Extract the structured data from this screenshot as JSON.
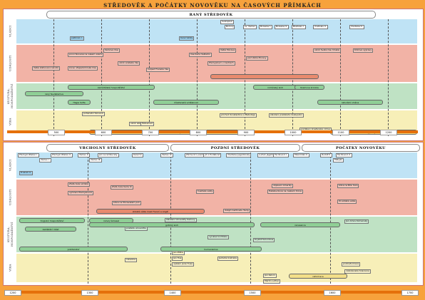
{
  "title": "STŘEDOVĚK A POČÁTKY NOVOVĚKU NA ČASOVÝCH PŘÍMKÁCH",
  "top_panel": {
    "era": "RANÝ STŘEDOVĚK",
    "band_labels": [
      "VLÁDCI",
      "UDÁLOSTI",
      "KULTURA, HOSPODÁŘSTVÍ",
      "VÍRA"
    ],
    "rulers": [
      {
        "text": "Svatopluk"
      },
      {
        "text": "Bořivoj"
      },
      {
        "text": "sv. Václav"
      },
      {
        "text": "Boleslav I."
      },
      {
        "text": "Boleslav II."
      },
      {
        "text": "Břetislav I."
      },
      {
        "text": "Vratislav II."
      },
      {
        "text": "Vladislav II."
      },
      {
        "text": "Justinián I."
      },
      {
        "text": "Karel Veliký"
      }
    ],
    "events": [
      {
        "text": "Sámova říše"
      },
      {
        "text": "první Slované na našem území"
      },
      {
        "text": "Velká Morava"
      },
      {
        "text": "říše Karla Velikého"
      },
      {
        "text": "vznik arabské říše"
      },
      {
        "text": "Přemyslovci v Čechách"
      },
      {
        "text": "vznik Svaté říše římské"
      },
      {
        "text": "Velké stěhování národů"
      },
      {
        "text": "Křížové výpravy"
      },
      {
        "text": "konec Západořímské říše"
      },
      {
        "text": "pád Velké Moravy"
      },
      {
        "text": "rozpad Franské říše"
      }
    ],
    "culture": [
      {
        "text": "zemědělské hospodářství"
      },
      {
        "text": "románský sloh"
      },
      {
        "text": "Hagia Sofia"
      },
      {
        "text": "křesťanská vzdělanost"
      },
      {
        "text": "raný feudalismus"
      },
      {
        "text": "Kosmova kronika"
      },
      {
        "text": "naturální směna"
      }
    ],
    "faith": [
      {
        "text": "pohanství Slovanů"
      },
      {
        "text": "vznik islámu"
      },
      {
        "text": "Mohamed"
      },
      {
        "text": "příchod Konstantina a Metoděje"
      },
      {
        "text": "založení pražského biskupství"
      },
      {
        "text": "rozdělení křesťanské církve"
      },
      {
        "text": "šíření křesťanství v Evropě"
      },
      {
        "text": "křížové výpravy do Palestiny"
      }
    ],
    "years": [
      "500",
      "600",
      "700",
      "800",
      "900",
      "1000",
      "1100",
      "1200"
    ]
  },
  "bottom_panel": {
    "eras": [
      "VRCHOLNÝ STŘEDOVĚK",
      "POZDNÍ STŘEDOVĚK",
      "POČÁTKY NOVOVĚKU"
    ],
    "band_labels": [
      "VLÁDCI",
      "UDÁLOSTI",
      "KULTURA, HOSPODÁŘSTVÍ",
      "VÍRA"
    ],
    "rulers": [
      {
        "text": "Přemysl Otakar I."
      },
      {
        "text": "Přemysl Otakar II."
      },
      {
        "text": "Václav II."
      },
      {
        "text": "Jan Lucemburský"
      },
      {
        "text": "Karel IV."
      },
      {
        "text": "Václav IV."
      },
      {
        "text": "Zikmund Lucemburský"
      },
      {
        "text": "Jiří z Poděbrad"
      },
      {
        "text": "Vladislav Jagellonský"
      },
      {
        "text": "Ludvík Jagellonský"
      },
      {
        "text": "Ferdinand I."
      },
      {
        "text": "Maxmilián II."
      },
      {
        "text": "Rudolf II."
      },
      {
        "text": "Ferdinand II."
      },
      {
        "text": "Václav I."
      },
      {
        "text": "Václav III."
      },
      {
        "text": "Matyáš"
      },
      {
        "text": "Fridrich II."
      }
    ],
    "events": [
      {
        "text": "Zlatá bula sicilská"
      },
      {
        "text": "vymření Přemyslovců"
      },
      {
        "text": "Zlatá bula Karla IV."
      },
      {
        "text": "husitské války"
      },
      {
        "text": "stoletá válka mezi Francií a Anglií"
      },
      {
        "text": "Habsburkové na českém trůně"
      },
      {
        "text": "třicetiletá válka"
      },
      {
        "text": "bitva na Moravském poli"
      },
      {
        "text": "bitva na Bílé hoře"
      },
      {
        "text": "objevení Ameriky"
      },
      {
        "text": "dobytí Cařihradu Turky"
      }
    ],
    "culture": [
      {
        "text": "trojpolní hospodářství"
      },
      {
        "text": "gotický sloh"
      },
      {
        "text": "renesance"
      },
      {
        "text": "založení Univerzity Karlovy"
      },
      {
        "text": "vynález knihtisku"
      },
      {
        "text": "zakládání měst"
      },
      {
        "text": "pražská univerzita"
      },
      {
        "text": "humanismus"
      },
      {
        "text": "poddanství"
      },
      {
        "text": "rozvoj řemesel"
      },
      {
        "text": "Kryštof Kolumbus"
      },
      {
        "text": "Jan Amos Komenský"
      }
    ],
    "faith": [
      {
        "text": "Jan Hus"
      },
      {
        "text": "Martin Luther"
      },
      {
        "text": "reformace"
      },
      {
        "text": "Jan Kalvín"
      },
      {
        "text": "protireformace"
      },
      {
        "text": "inkvizice"
      },
      {
        "text": "Jednota bratrská"
      },
      {
        "text": "upálení Jana Husa"
      },
      {
        "text": "Jan Žižka"
      },
      {
        "text": "náboženská tolerance"
      }
    ],
    "years": [
      "1200",
      "1300",
      "1400",
      "1500",
      "1600",
      "1700"
    ]
  },
  "colors": {
    "background": "#f7a23c",
    "rulers_band": "#bfe3f5",
    "events_band": "#f2b3a6",
    "culture_band": "#bfe2c4",
    "faith_band": "#f7efb8",
    "arrow": "#e5700a"
  }
}
